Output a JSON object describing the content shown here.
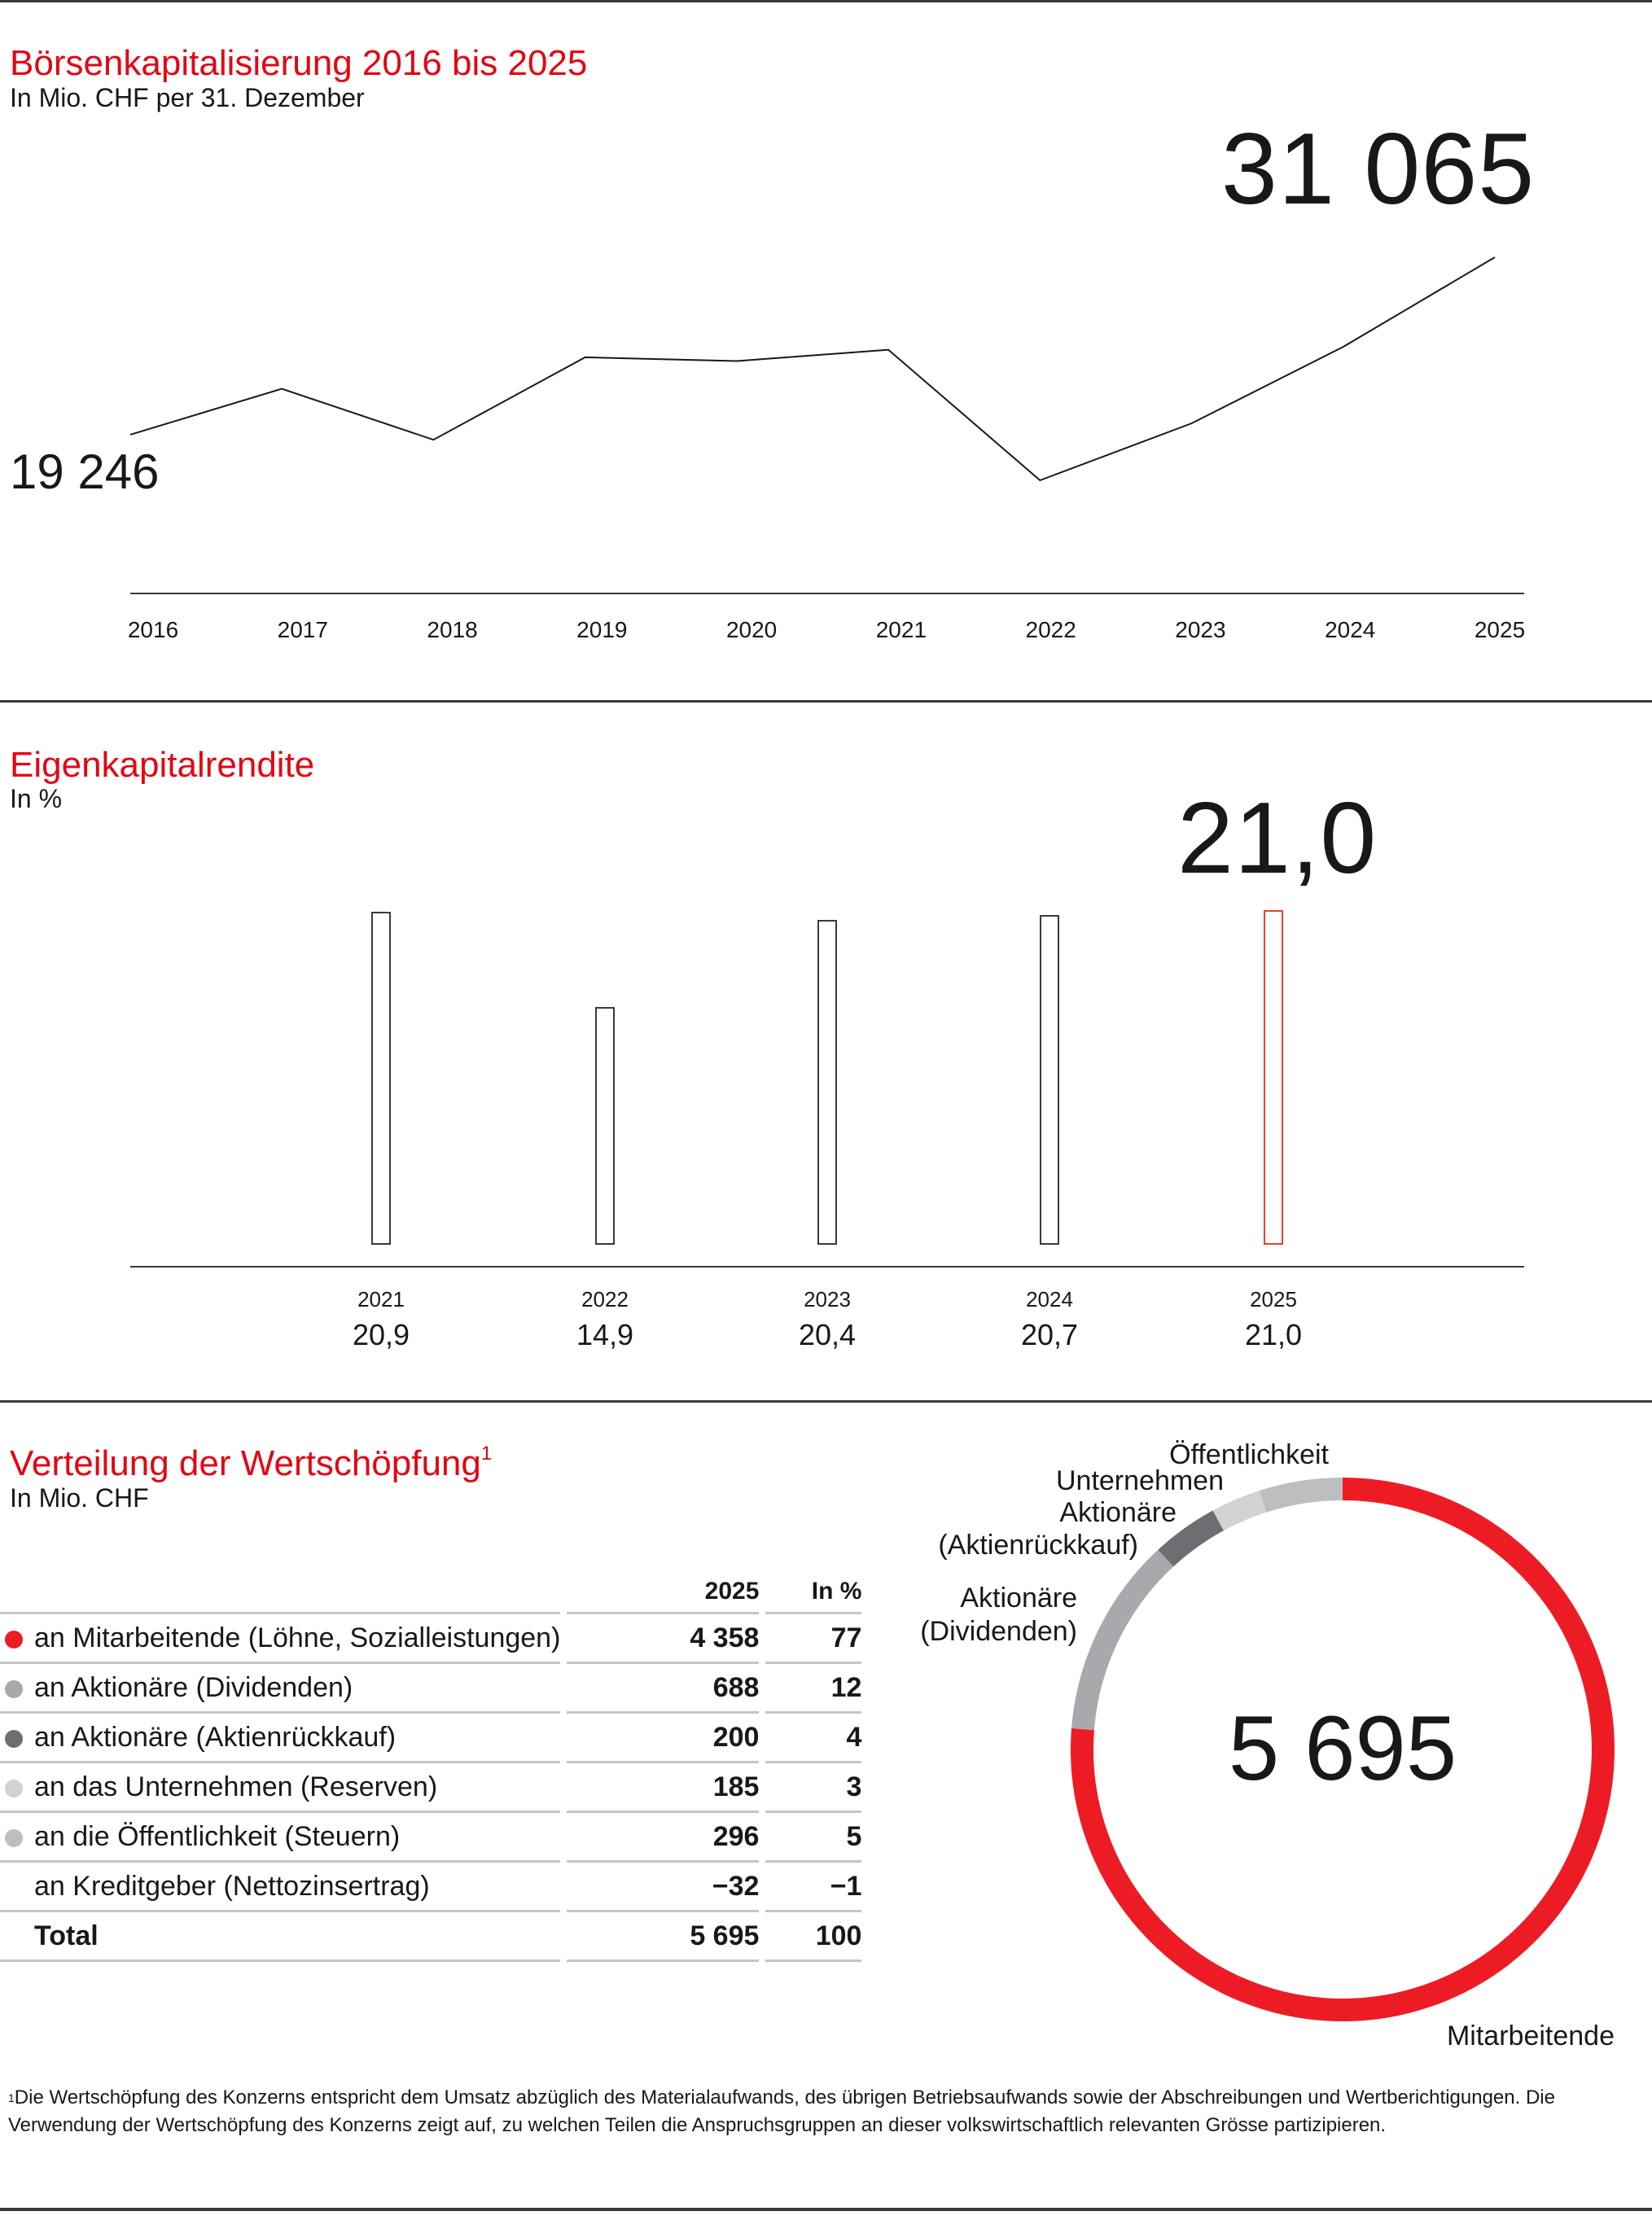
{
  "section1": {
    "title": "Börsenkapitalisierung 2016 bis 2025",
    "subtitle": "In Mio. CHF per 31. Dezember",
    "highlight_value": "31 065",
    "start_value": "19 246"
  },
  "section2": {
    "title": "Eigenkapitalrendite",
    "subtitle": "In %",
    "highlight_value": "21,0"
  },
  "section3": {
    "title": "Verteilung der Wertschöpfung",
    "title_footnote_marker": "1",
    "subtitle": "In Mio. CHF",
    "table": {
      "headers": [
        "",
        "2025",
        "In %"
      ],
      "rows": [
        {
          "label": "an Mitarbeitende (Löhne, Sozialleistungen)",
          "value": "4 358",
          "pct": "77",
          "dot_color": "#ed1c24"
        },
        {
          "label": "an Aktionäre (Dividenden)",
          "value": "688",
          "pct": "12",
          "dot_color": "#a7a9ac"
        },
        {
          "label": "an Aktionäre (Aktienrückkauf)",
          "value": "200",
          "pct": "4",
          "dot_color": "#6d6e71"
        },
        {
          "label": "an das Unternehmen (Reserven)",
          "value": "185",
          "pct": "3",
          "dot_color": "#d1d2d4"
        },
        {
          "label": "an die Öffentlichkeit (Steuern)",
          "value": "296",
          "pct": "5",
          "dot_color": "#bcbec0"
        },
        {
          "label": "an Kreditgeber (Nettozinsertrag)",
          "value": "−32",
          "pct": "−1",
          "dot_color": null
        },
        {
          "label": "Total",
          "value": "5 695",
          "pct": "100",
          "dot_color": null
        }
      ]
    },
    "donut_center": "5 695",
    "donut_labels": {
      "oeffentlichkeit": "Öffentlichkeit",
      "unternehmen": "Unternehmen",
      "aktionaere_rk_1": "Aktionäre",
      "aktionaere_rk_2": "(Aktienrückkauf)",
      "aktionaere_div_1": "Aktionäre",
      "aktionaere_div_2": "(Dividenden)",
      "mitarbeitende": "Mitarbeitende"
    }
  },
  "footnote": {
    "marker": "1",
    "text": "Die Wertschöpfung des Konzerns entspricht dem Umsatz abzüglich des Materialaufwands, des übrigen Betriebsaufwands sowie der Abschreibungen und Wertberichtigungen. Die Verwendung der Wertschöpfung des Konzerns zeigt auf, zu welchen Teilen die Anspruchsgruppen an dieser volkswirtschaftlich relevanten Grösse partizipieren."
  },
  "colors": {
    "accent_red": "#e30613",
    "donut_red": "#ed1c24",
    "highlight_bar": "#e8412c",
    "text": "#1a1718"
  },
  "chart_data": [
    {
      "type": "line",
      "title": "Börsenkapitalisierung 2016 bis 2025",
      "subtitle": "In Mio. CHF per 31. Dezember",
      "x": [
        "2016",
        "2017",
        "2018",
        "2019",
        "2020",
        "2021",
        "2022",
        "2023",
        "2024",
        "2025"
      ],
      "values": [
        19246,
        22300,
        18900,
        24400,
        24150,
        24900,
        16200,
        20000,
        25100,
        31065
      ],
      "annotations": [
        {
          "x": "2016",
          "label": "19 246"
        },
        {
          "x": "2025",
          "label": "31 065"
        }
      ],
      "xlabel": "",
      "ylabel": "",
      "grid": false
    },
    {
      "type": "bar",
      "title": "Eigenkapitalrendite",
      "subtitle": "In %",
      "categories": [
        "2021",
        "2022",
        "2023",
        "2024",
        "2025"
      ],
      "values": [
        20.9,
        14.9,
        20.4,
        20.7,
        21.0
      ],
      "value_labels": [
        "20,9",
        "14,9",
        "20,4",
        "20,7",
        "21,0"
      ],
      "highlight": "2025",
      "xlabel": "",
      "ylabel": "",
      "grid": false
    },
    {
      "type": "pie",
      "title": "Verteilung der Wertschöpfung",
      "subtitle": "In Mio. CHF",
      "center_label": "5 695",
      "categories": [
        "Mitarbeitende",
        "Aktionäre (Dividenden)",
        "Aktionäre (Aktienrückkauf)",
        "Unternehmen",
        "Öffentlichkeit"
      ],
      "values": [
        4358,
        688,
        200,
        185,
        296
      ],
      "percent": [
        77,
        12,
        4,
        3,
        5
      ],
      "colors": [
        "#ed1c24",
        "#a7a9ac",
        "#6d6e71",
        "#d1d2d4",
        "#bcbec0"
      ]
    }
  ]
}
